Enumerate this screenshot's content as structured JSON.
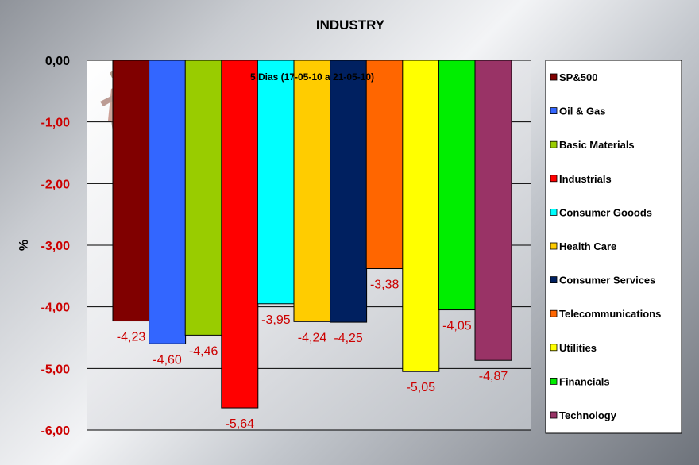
{
  "chart_data": {
    "type": "bar",
    "title": "INDUSTRY",
    "subtitle": "5 Dias (17-05-10 a 21-05-10)",
    "ylabel": "%",
    "ylim": [
      -6,
      0
    ],
    "y_ticks": [
      "0,00",
      "-1,00",
      "-2,00",
      "-3,00",
      "-4,00",
      "-5,00",
      "-6,00"
    ],
    "grid": true,
    "legend_position": "right",
    "series": [
      {
        "name": "SP&500",
        "value": -4.23,
        "label": "-4,23",
        "color": "#800000"
      },
      {
        "name": "Oil & Gas",
        "value": -4.6,
        "label": "-4,60",
        "color": "#3366ff"
      },
      {
        "name": "Basic Materials",
        "value": -4.46,
        "label": "-4,46",
        "color": "#99cc00"
      },
      {
        "name": "Industrials",
        "value": -5.64,
        "label": "-5,64",
        "color": "#ff0000"
      },
      {
        "name": "Consumer Gooods",
        "value": -3.95,
        "label": "-3,95",
        "color": "#00ffff"
      },
      {
        "name": "Health Care",
        "value": -4.24,
        "label": "-4,24",
        "color": "#ffcc00"
      },
      {
        "name": "Consumer Services",
        "value": -4.25,
        "label": "-4,25",
        "color": "#002060"
      },
      {
        "name": "Telecommunications",
        "value": -3.38,
        "label": "-3,38",
        "color": "#ff6600"
      },
      {
        "name": "Utilities",
        "value": -5.05,
        "label": "-5,05",
        "color": "#ffff00"
      },
      {
        "name": "Financials",
        "value": -4.05,
        "label": "-4,05",
        "color": "#00ee00"
      },
      {
        "name": "Technology",
        "value": -4.87,
        "label": "-4,87",
        "color": "#993366"
      }
    ],
    "colors": {
      "tick_label": "#000000",
      "negative_tick_label": "#cc0000",
      "data_label": "#cc0000",
      "grid": "#000000"
    }
  }
}
